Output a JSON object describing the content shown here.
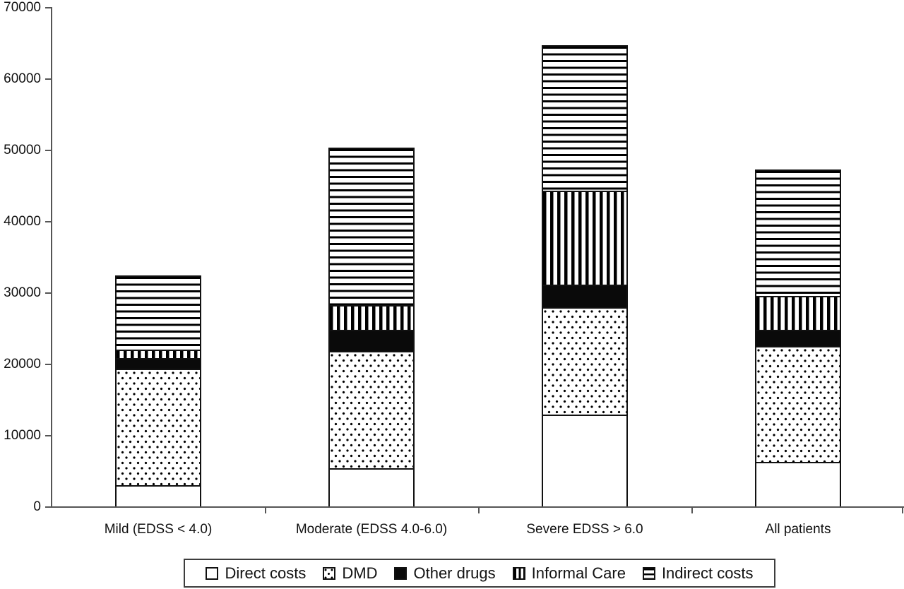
{
  "chart_data": {
    "type": "bar",
    "stacked": true,
    "title": "",
    "xlabel": "",
    "ylabel": "",
    "categories": [
      "Mild (EDSS < 4.0)",
      "Moderate (EDSS 4.0-6.0)",
      "Severe EDSS > 6.0",
      "All patients"
    ],
    "series": [
      {
        "name": "Direct costs",
        "pattern": "solid-white",
        "values": [
          3000,
          5300,
          12900,
          6200
        ]
      },
      {
        "name": "DMD",
        "pattern": "dots",
        "values": [
          16300,
          16500,
          15000,
          16300
        ]
      },
      {
        "name": "Other drugs",
        "pattern": "solid-black",
        "values": [
          1500,
          3000,
          3150,
          2300
        ]
      },
      {
        "name": "Informal Care",
        "pattern": "vertical-stripes",
        "values": [
          1200,
          3450,
          13200,
          4700
        ]
      },
      {
        "name": "Indirect costs",
        "pattern": "horizontal-stripes",
        "values": [
          10400,
          22050,
          20400,
          17700
        ]
      }
    ],
    "totals": [
      32400,
      50300,
      64650,
      47200
    ],
    "ylim": [
      0,
      70000
    ],
    "ytick_step": 10000,
    "ytick_labels": [
      "0",
      "10000",
      "20000",
      "30000",
      "40000",
      "50000",
      "60000",
      "70000"
    ],
    "grid": false,
    "legend_position": "bottom",
    "legend_entries": [
      "Direct costs",
      "DMD",
      "Other drugs",
      "Informal Care",
      "Indirect costs"
    ]
  },
  "colors": {
    "background": "#ffffff",
    "ink": "#111111",
    "axis": "#555555",
    "legend_border": "#3d3d3d"
  }
}
